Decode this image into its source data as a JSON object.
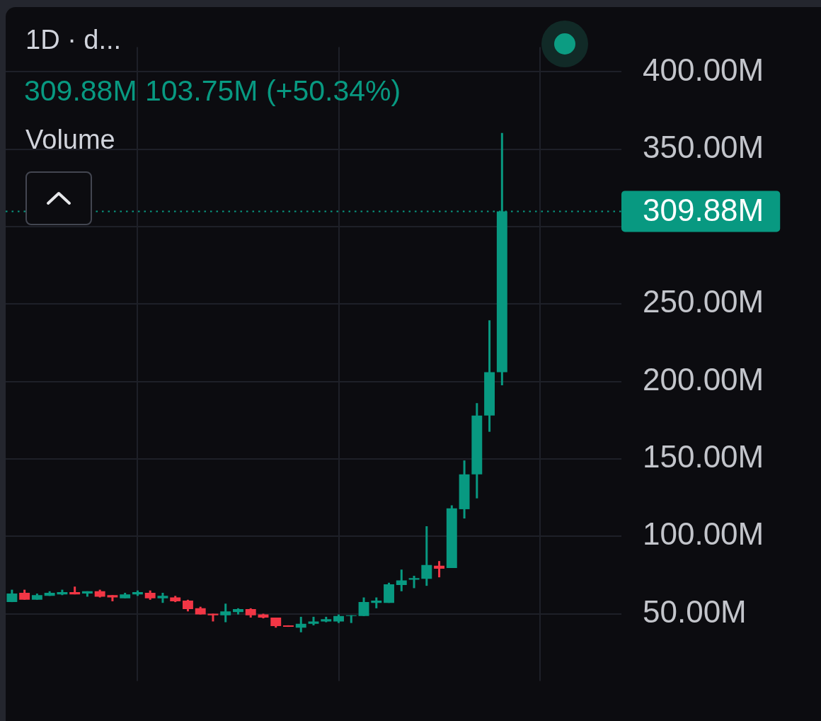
{
  "chart_data": {
    "type": "candlestick",
    "title": "1D · d...",
    "subtitle": "309.88M  103.75M (+50.34%)",
    "annotations": [
      "Volume"
    ],
    "categories": [
      null,
      null,
      null,
      null,
      null,
      null,
      null,
      null,
      null,
      null,
      null,
      null,
      null,
      null,
      null,
      null,
      null,
      null,
      null,
      null,
      null,
      null,
      null,
      null,
      null,
      null,
      null,
      null,
      null,
      null,
      null,
      null,
      null,
      null,
      null,
      null,
      null,
      null,
      null,
      null,
      null,
      null,
      null,
      null,
      null,
      null,
      null,
      null,
      null
    ],
    "ohlc": [
      [
        57.5,
        65.5,
        57.5,
        63
      ],
      [
        63.5,
        65.5,
        59,
        59
      ],
      [
        59,
        63,
        59,
        62
      ],
      [
        61.5,
        64.5,
        61.5,
        63.5
      ],
      [
        62.5,
        65.5,
        62,
        64
      ],
      [
        64,
        67.5,
        62.5,
        62.5
      ],
      [
        63,
        64.5,
        61,
        64.5
      ],
      [
        64.5,
        65.5,
        60.5,
        61
      ],
      [
        62,
        62,
        58,
        60.5
      ],
      [
        60,
        63.5,
        60,
        62.5
      ],
      [
        62.5,
        65,
        61.5,
        64
      ],
      [
        63.5,
        65,
        59,
        60
      ],
      [
        60,
        63.5,
        57,
        61.5
      ],
      [
        60.5,
        61.5,
        57.5,
        58
      ],
      [
        58.5,
        59,
        51.5,
        53
      ],
      [
        53.5,
        54.5,
        49.5,
        49.5
      ],
      [
        50,
        50,
        45,
        49
      ],
      [
        49,
        56.5,
        44.5,
        51.5
      ],
      [
        51,
        53.5,
        49.5,
        53
      ],
      [
        53,
        53.5,
        47.5,
        49
      ],
      [
        49.5,
        50,
        47,
        47.5
      ],
      [
        47.5,
        47.5,
        41,
        42
      ],
      [
        42.5,
        42.5,
        41.5,
        41.5
      ],
      [
        41,
        48,
        38,
        43.5
      ],
      [
        43.5,
        48,
        42.5,
        45
      ],
      [
        45,
        48,
        44.5,
        46.5
      ],
      [
        45,
        49.5,
        44,
        48.5
      ],
      [
        48.5,
        49,
        44,
        49
      ],
      [
        48.5,
        60.5,
        48.5,
        57.5
      ],
      [
        57,
        60.5,
        53.5,
        58.5
      ],
      [
        57,
        70,
        57,
        69
      ],
      [
        68.5,
        78.5,
        64.5,
        71.5
      ],
      [
        72,
        74.5,
        66.5,
        73
      ],
      [
        72.5,
        106.5,
        68,
        81.5
      ],
      [
        81,
        84,
        73.5,
        79
      ],
      [
        79.5,
        120,
        79.5,
        118
      ],
      [
        117.5,
        149,
        111.5,
        140
      ],
      [
        140,
        186,
        124.5,
        178
      ],
      [
        178,
        239.5,
        167.5,
        206
      ],
      [
        206,
        360.5,
        197.5,
        309.88
      ],
      null,
      null,
      null,
      null,
      null,
      null,
      null,
      null,
      null
    ],
    "colors": [
      "#089981",
      "#f23645",
      "#089981",
      "#089981",
      "#089981",
      "#f23645",
      "#089981",
      "#f23645",
      "#f23645",
      "#089981",
      "#089981",
      "#f23645",
      "#089981",
      "#f23645",
      "#f23645",
      "#f23645",
      "#f23645",
      "#089981",
      "#089981",
      "#f23645",
      "#f23645",
      "#f23645",
      "#f23645",
      "#089981",
      "#089981",
      "#089981",
      "#089981",
      "#089981",
      "#089981",
      "#089981",
      "#089981",
      "#089981",
      "#089981",
      "#089981",
      "#f23645",
      "#089981",
      "#089981",
      "#089981",
      "#089981",
      "#089981",
      null,
      null,
      null,
      null,
      null,
      null,
      null,
      null,
      null
    ],
    "ylim": [
      6.5,
      416
    ],
    "yticks": [
      {
        "value": 50,
        "label": "50.00M"
      },
      {
        "value": 100,
        "label": "100.00M"
      },
      {
        "value": 150,
        "label": "150.00M"
      },
      {
        "value": 200,
        "label": "200.00M"
      },
      {
        "value": 250,
        "label": "250.00M"
      },
      {
        "value": 300,
        "label": null
      },
      {
        "value": 350,
        "label": "350.00M"
      },
      {
        "value": 400,
        "label": "400.00M"
      }
    ],
    "grid": true,
    "ref_lines": [
      {
        "axis": "y",
        "value": 309.88,
        "label": "309.88M",
        "color": "#089981",
        "line_style": "dotted"
      }
    ]
  }
}
